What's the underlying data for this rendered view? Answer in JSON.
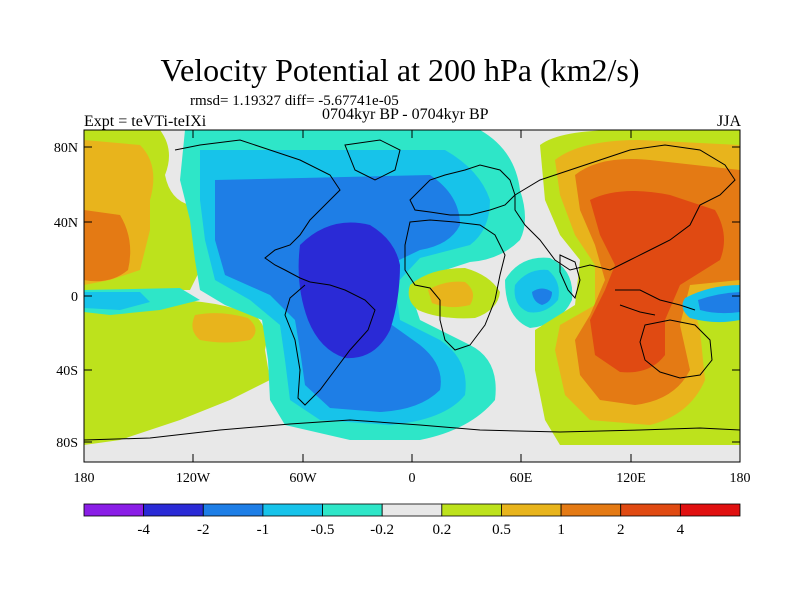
{
  "title": "Velocity Potential at 200 hPa (km2/s)",
  "stats_line": "rmsd= 1.19327 diff= -5.67741e-05",
  "experiment": "Expt = teVTi-teIXi",
  "period": "0704kyr BP - 0704kyr BP",
  "season": "JJA",
  "lat_ticks": [
    "80N",
    "40N",
    "0",
    "40S",
    "80S"
  ],
  "lon_ticks": [
    "180",
    "120W",
    "60W",
    "0",
    "60E",
    "120E",
    "180"
  ],
  "colorbar": {
    "labels": [
      "-4",
      "-2",
      "-1",
      "-0.5",
      "-0.2",
      "0.2",
      "0.5",
      "1",
      "2",
      "4"
    ],
    "colors": [
      "#8a1ee6",
      "#2a2ad6",
      "#1e7ee6",
      "#17c3ea",
      "#2ee6c8",
      "#e8e8e8",
      "#bde21c",
      "#e8b41c",
      "#e47a14",
      "#e04a12",
      "#e01010"
    ]
  },
  "map_colors": {
    "neutral": "#e8e8e8",
    "light_green": "#bde21c",
    "yellow_orange": "#e8b41c",
    "orange": "#e47a14",
    "red_orange": "#e04a12",
    "teal": "#2ee6c8",
    "cyan": "#17c3ea",
    "blue": "#1e7ee6",
    "dark_blue": "#2a2ad6"
  }
}
